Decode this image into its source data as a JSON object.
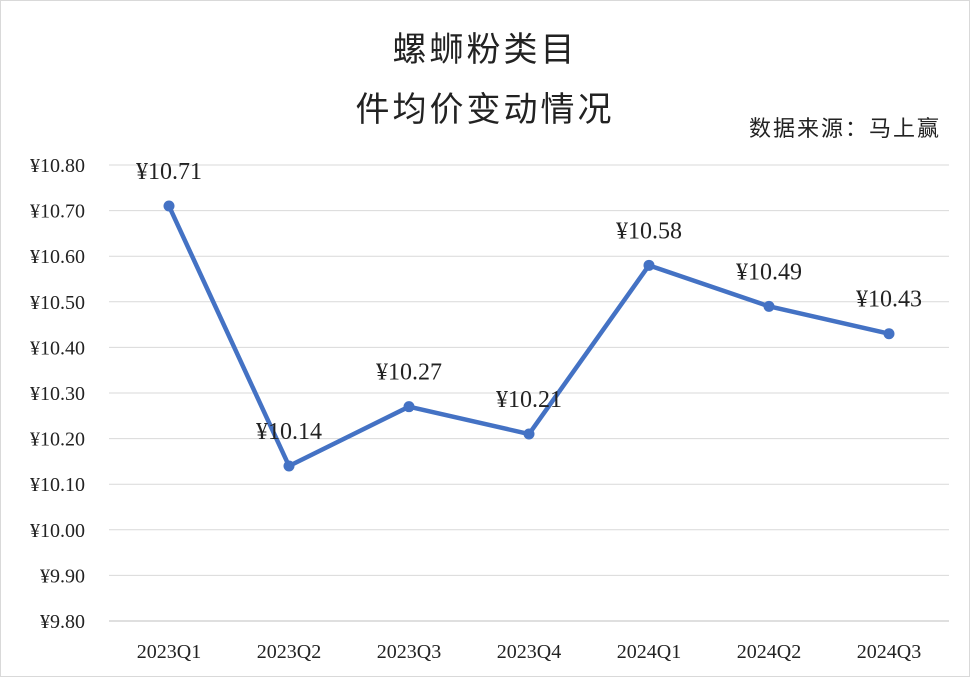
{
  "chart_data": {
    "type": "line",
    "title_line1": "螺蛳粉类目",
    "title_line2": "件均价变动情况",
    "source": "数据来源：马上赢",
    "categories": [
      "2023Q1",
      "2023Q2",
      "2023Q3",
      "2023Q4",
      "2024Q1",
      "2024Q2",
      "2024Q3"
    ],
    "series": [
      {
        "values": [
          10.71,
          10.14,
          10.27,
          10.21,
          10.58,
          10.49,
          10.43
        ],
        "color": "#4472c4"
      }
    ],
    "data_labels": [
      "¥10.71",
      "¥10.14",
      "¥10.27",
      "¥10.21",
      "¥10.58",
      "¥10.49",
      "¥10.43"
    ],
    "yticks": [
      "¥10.80",
      "¥10.70",
      "¥10.60",
      "¥10.50",
      "¥10.40",
      "¥10.30",
      "¥10.20",
      "¥10.10",
      "¥10.00",
      "¥9.90",
      "¥9.80"
    ],
    "ylim": [
      9.8,
      10.8
    ],
    "grid": true,
    "legend": "none"
  }
}
